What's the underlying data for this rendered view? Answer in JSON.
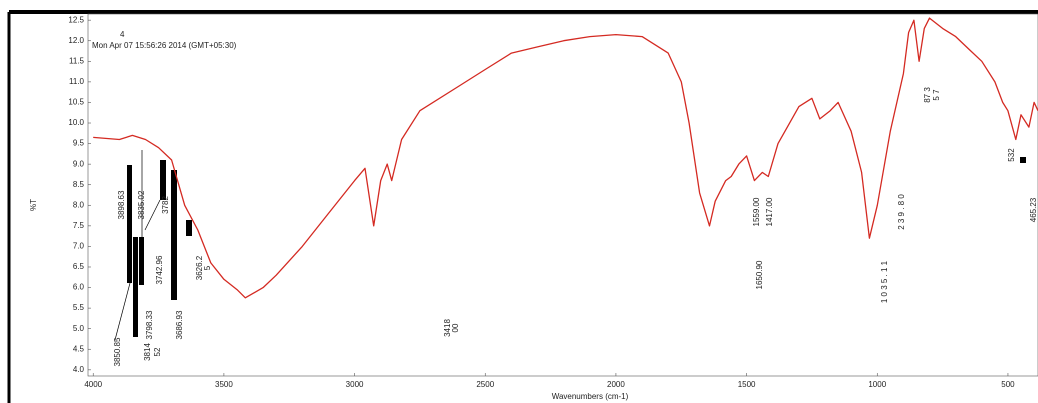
{
  "chart_data": {
    "type": "line",
    "annotations": [
      "4",
      "Mon Apr 07 15:56:26 2014 (GMT+05:30)"
    ],
    "peak_labels": [
      "3898.63",
      "3835.02",
      "3782",
      "3742.96",
      "3798.33",
      "3686.93",
      "3850.85",
      "3814",
      "52",
      "3626.2",
      "5",
      "3418",
      "00",
      "1559.00",
      "1417.00",
      "1650.90",
      "2 3 9 . 8 0",
      "1 0 3 5 . 1 1",
      "87 3",
      "5 7",
      "532",
      "465.23"
    ],
    "xlabel": "Wavenumbers (cm-1)",
    "ylabel": "%T",
    "x": [
      4000,
      3900,
      3850,
      3800,
      3750,
      3700,
      3650,
      3600,
      3550,
      3500,
      3450,
      3418,
      3350,
      3300,
      3200,
      3100,
      3000,
      2960,
      2927,
      2900,
      2875,
      2858,
      2820,
      2750,
      2600,
      2500,
      2400,
      2300,
      2200,
      2100,
      2000,
      1900,
      1800,
      1750,
      1720,
      1680,
      1642,
      1620,
      1580,
      1559,
      1530,
      1500,
      1470,
      1440,
      1417,
      1380,
      1300,
      1250,
      1220,
      1180,
      1150,
      1100,
      1060,
      1030,
      1000,
      950,
      900,
      880,
      860,
      840,
      820,
      800,
      750,
      700,
      650,
      600,
      550,
      520,
      500,
      470,
      450,
      420,
      400,
      385
    ],
    "series": [
      {
        "name": "%T",
        "color": "#d42a22",
        "values": [
          9.65,
          9.6,
          9.7,
          9.6,
          9.4,
          9.1,
          8.0,
          7.4,
          6.6,
          6.2,
          5.95,
          5.75,
          6.0,
          6.3,
          7.0,
          7.8,
          8.6,
          8.9,
          7.5,
          8.6,
          9.0,
          8.6,
          9.6,
          10.3,
          10.9,
          11.3,
          11.7,
          11.85,
          12.0,
          12.1,
          12.15,
          12.1,
          11.7,
          11.0,
          10.0,
          8.3,
          7.5,
          8.1,
          8.6,
          8.7,
          9.0,
          9.2,
          8.6,
          8.8,
          8.7,
          9.5,
          10.4,
          10.6,
          10.1,
          10.3,
          10.5,
          9.8,
          8.8,
          7.2,
          8.0,
          9.8,
          11.2,
          12.2,
          12.5,
          11.5,
          12.3,
          12.55,
          12.3,
          12.1,
          11.8,
          11.5,
          11.0,
          10.5,
          10.3,
          9.6,
          10.2,
          9.9,
          10.5,
          10.3
        ]
      }
    ],
    "xlim": [
      4020,
      385
    ],
    "ylim": [
      3.85,
      12.65
    ],
    "xticks": [
      4000,
      3500,
      3000,
      2500,
      2000,
      1500,
      1000,
      500
    ],
    "yticks": [
      {
        "value": 4,
        "label": "4.0"
      },
      4.5,
      {
        "value": 5,
        "label": "5.0"
      },
      5.5,
      {
        "value": 6,
        "label": "6.0"
      },
      6.5,
      {
        "value": 7,
        "label": "7.0"
      },
      7.5,
      {
        "value": 8,
        "label": "8.0"
      },
      8.5,
      {
        "value": 9,
        "label": "9.0"
      },
      9.5,
      {
        "value": 10,
        "label": "10.0"
      },
      10.5,
      {
        "value": 11,
        "label": "11.0"
      },
      11.5,
      {
        "value": 12,
        "label": "12.0"
      },
      12.5
    ],
    "grid": false
  }
}
